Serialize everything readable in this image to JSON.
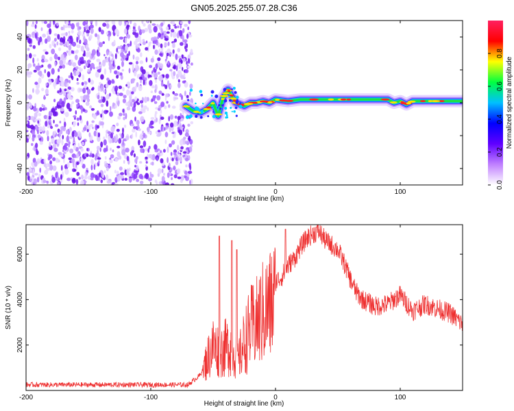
{
  "title": "GN05.2025.255.07.28.C36",
  "chart_data": [
    {
      "type": "heatmap",
      "title": "GN05.2025.255.07.28.C36",
      "xlabel": "Height of straight line (km)",
      "ylabel": "Frequency (Hz)",
      "xlim": [
        -200,
        150
      ],
      "ylim": [
        -50,
        50
      ],
      "x_ticks": [
        -200,
        -100,
        0,
        100
      ],
      "x_tick_labels": [
        "-200",
        "-100",
        "0",
        "100"
      ],
      "y_ticks": [
        -40,
        -20,
        0,
        20,
        40
      ],
      "y_tick_labels": [
        "-40",
        "-20",
        "0",
        "20",
        "40"
      ],
      "noise_region_x": [
        -200,
        -67
      ],
      "signal_track": {
        "x": [
          -72,
          -66,
          -60,
          -55,
          -50,
          -46,
          -42,
          -38,
          -35,
          -32,
          -28,
          -25,
          -20,
          -15,
          -10,
          -5,
          0,
          10,
          20,
          40,
          60,
          80,
          90,
          95,
          100,
          105,
          110,
          120,
          130,
          150
        ],
        "y": [
          -2,
          -5,
          -6,
          -4,
          0,
          -8,
          3,
          8,
          4,
          0,
          -1,
          -2,
          0,
          0,
          1,
          0,
          2,
          1,
          2,
          2,
          2,
          2,
          2,
          0,
          1,
          -1,
          1,
          1,
          1,
          1
        ]
      },
      "colorbar": {
        "label": "Normalized spectral amplitude",
        "range": [
          0,
          1
        ],
        "ticks": [
          0.0,
          0.2,
          0.4,
          0.6,
          0.8
        ],
        "tick_labels": [
          "0.0",
          "0.2",
          "0.4",
          "0.6",
          "0.8"
        ],
        "colors": [
          "#ffffff",
          "#c080ff",
          "#6000ff",
          "#0000ff",
          "#00c0ff",
          "#00ff40",
          "#ffff00",
          "#ff0000",
          "#ff2060"
        ]
      }
    },
    {
      "type": "line",
      "xlabel": "Height of straight line (km)",
      "ylabel": "SNR (10 * v/v)",
      "xlim": [
        -200,
        150
      ],
      "ylim": [
        0,
        7300
      ],
      "x_ticks": [
        -200,
        -100,
        0,
        100
      ],
      "x_tick_labels": [
        "-200",
        "-100",
        "0",
        "100"
      ],
      "y_ticks": [
        2000,
        4000,
        6000
      ],
      "y_tick_labels": [
        "2000",
        "4000",
        "6000"
      ],
      "color": "#ee3030",
      "envelope": {
        "x": [
          -200,
          -70,
          -60,
          -55,
          -50,
          -45,
          -40,
          -35,
          -30,
          -25,
          -20,
          -15,
          -10,
          -5,
          0,
          5,
          10,
          15,
          20,
          25,
          30,
          35,
          40,
          45,
          50,
          55,
          60,
          65,
          70,
          80,
          90,
          100,
          110,
          120,
          130,
          140,
          150
        ],
        "y": [
          250,
          250,
          700,
          1600,
          2300,
          2000,
          2200,
          2300,
          1500,
          2500,
          3200,
          3500,
          4000,
          4300,
          4800,
          5000,
          5500,
          5800,
          6300,
          6700,
          6900,
          7000,
          6600,
          6400,
          6200,
          5600,
          4900,
          4300,
          4000,
          3700,
          3800,
          4200,
          3500,
          3800,
          3600,
          3400,
          2900
        ]
      },
      "peaks": [
        {
          "x": -45,
          "y": 6800
        },
        {
          "x": -35,
          "y": 6600
        },
        {
          "x": -31,
          "y": 6200
        },
        {
          "x": 8,
          "y": 7100
        },
        {
          "x": 33,
          "y": 7200
        }
      ]
    }
  ]
}
